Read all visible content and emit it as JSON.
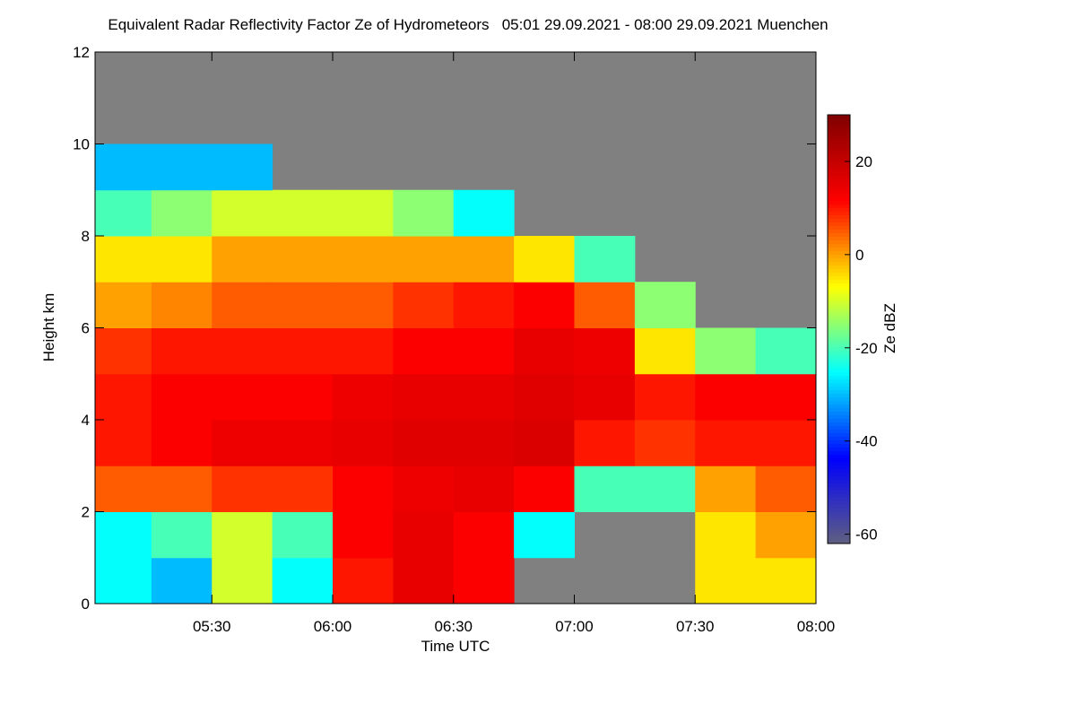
{
  "chart_data": {
    "type": "heatmap",
    "title": "Equivalent Radar Reflectivity Factor Ze of Hydrometeors   05:01 29.09.2021 - 08:00 29.09.2021 Muenchen",
    "xlabel": "Time UTC",
    "ylabel": "Height km",
    "colorbar_label": "Ze dBZ",
    "xlim": [
      "05:01",
      "08:00"
    ],
    "xticks": [
      "05:30",
      "06:00",
      "06:30",
      "07:00",
      "07:30",
      "08:00"
    ],
    "x_bins": [
      "05:01",
      "05:15",
      "05:30",
      "05:45",
      "06:00",
      "06:15",
      "06:30",
      "06:45",
      "07:00",
      "07:15",
      "07:30",
      "07:45",
      "08:00"
    ],
    "ylim": [
      0,
      12
    ],
    "yticks": [
      0,
      2,
      4,
      6,
      8,
      10,
      12
    ],
    "y_bins": [
      0,
      1,
      2,
      3,
      4,
      5,
      6,
      7,
      8,
      9,
      10,
      11,
      12
    ],
    "values": [
      [
        -25,
        -30,
        -10,
        -25,
        10,
        15,
        12,
        null,
        null,
        null,
        -5,
        -5
      ],
      [
        -25,
        -20,
        -10,
        -20,
        12,
        15,
        12,
        -25,
        null,
        null,
        -5,
        0
      ],
      [
        5,
        5,
        8,
        8,
        12,
        14,
        15,
        12,
        -20,
        -20,
        0,
        5
      ],
      [
        10,
        12,
        14,
        14,
        15,
        16,
        16,
        17,
        10,
        8,
        10,
        10
      ],
      [
        10,
        12,
        12,
        12,
        14,
        15,
        15,
        16,
        15,
        10,
        12,
        12
      ],
      [
        8,
        10,
        10,
        10,
        10,
        12,
        12,
        15,
        14,
        -5,
        -15,
        -20
      ],
      [
        0,
        2,
        5,
        5,
        5,
        8,
        10,
        12,
        5,
        -15,
        null,
        null
      ],
      [
        -5,
        -5,
        0,
        0,
        0,
        0,
        0,
        -5,
        -20,
        null,
        null,
        null
      ],
      [
        -20,
        -15,
        -10,
        -10,
        -10,
        -15,
        -25,
        null,
        null,
        null,
        null,
        null
      ],
      [
        -30,
        -30,
        -30,
        null,
        null,
        null,
        null,
        null,
        null,
        null,
        null,
        null
      ],
      [
        null,
        null,
        null,
        null,
        null,
        null,
        null,
        null,
        null,
        null,
        null,
        null
      ],
      [
        null,
        null,
        null,
        null,
        null,
        null,
        null,
        null,
        null,
        null,
        null,
        null
      ]
    ],
    "zlim": [
      -62,
      30
    ],
    "zticks": [
      20,
      0,
      -20,
      -40,
      -60
    ],
    "colormap": [
      "#606080",
      "#0000ff",
      "#00ffff",
      "#ffff00",
      "#ff0000",
      "#800000"
    ],
    "missing_color": "#808080"
  }
}
